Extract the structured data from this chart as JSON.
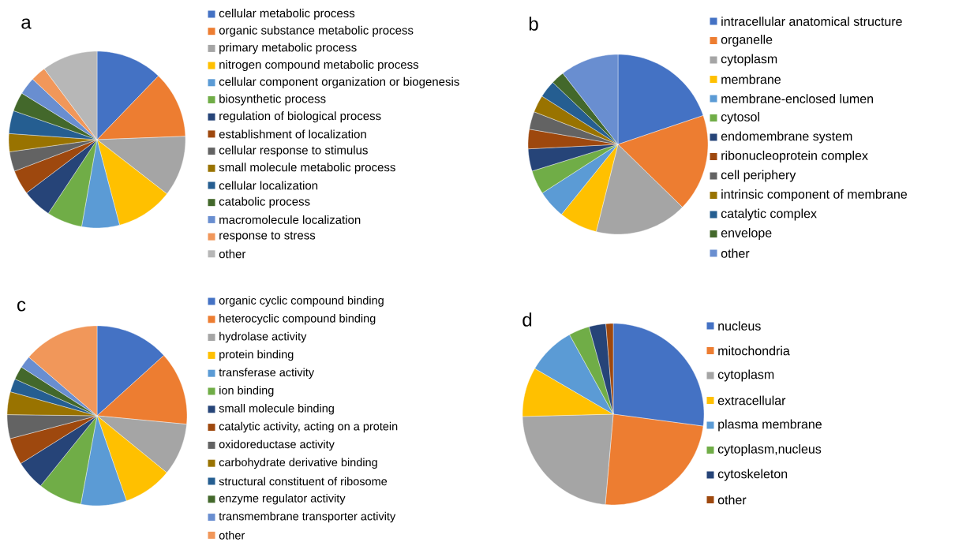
{
  "chart_data": [
    {
      "type": "pie",
      "title": "a",
      "legend": "right",
      "categories": [
        "cellular metabolic process",
        "organic substance metabolic process",
        "primary metabolic process",
        "nitrogen compound metabolic process",
        "cellular component organization or biogenesis",
        "biosynthetic process",
        "regulation of biological process",
        "establishment of localization",
        "cellular response to stimulus",
        "small molecule metabolic process",
        "cellular localization",
        "catabolic process",
        "macromolecule localization",
        "response to stress",
        "other"
      ],
      "values": [
        12.2,
        12.2,
        11.1,
        10.4,
        6.9,
        6.5,
        5.4,
        4.5,
        3.6,
        3.3,
        4.2,
        3.5,
        3.2,
        2.8,
        10.2
      ],
      "colors": [
        "#4472c4",
        "#ed7d31",
        "#a5a5a5",
        "#ffc000",
        "#5b9bd5",
        "#70ad47",
        "#264478",
        "#9e480e",
        "#636363",
        "#997300",
        "#255e91",
        "#43682b",
        "#698ed0",
        "#f1975a",
        "#b7b7b7"
      ]
    },
    {
      "type": "pie",
      "title": "b",
      "legend": "right",
      "categories": [
        "intracellular anatomical structure",
        "organelle",
        "cytoplasm",
        "membrane",
        "membrane-enclosed lumen",
        "cytosol",
        "endomembrane system",
        "ribonucleoprotein complex",
        "cell periphery",
        "intrinsic component of membrane",
        "catalytic complex",
        "envelope",
        "other"
      ],
      "values": [
        19.8,
        17.5,
        16.6,
        6.9,
        5.1,
        4.3,
        4.0,
        3.5,
        3.2,
        3.1,
        3.1,
        2.4,
        10.5
      ],
      "colors": [
        "#4472c4",
        "#ed7d31",
        "#a5a5a5",
        "#ffc000",
        "#5b9bd5",
        "#70ad47",
        "#264478",
        "#9e480e",
        "#636363",
        "#997300",
        "#255e91",
        "#43682b",
        "#698ed0"
      ]
    },
    {
      "type": "pie",
      "title": "c",
      "legend": "right",
      "categories": [
        "organic cyclic compound binding",
        "heterocyclic compound binding",
        "hydrolase activity",
        "protein binding",
        "transferase activity",
        "ion binding",
        "small molecule binding",
        "catalytic activity, acting on a protein",
        "oxidoreductase activity",
        "carbohydrate derivative binding",
        "structural constituent of ribosome",
        "enzyme regulator activity",
        "transmembrane transporter activity",
        "other"
      ],
      "values": [
        13.3,
        13.2,
        9.4,
        8.8,
        8.2,
        7.9,
        5.3,
        4.8,
        4.3,
        4.1,
        2.4,
        2.4,
        2.2,
        13.7
      ],
      "colors": [
        "#4472c4",
        "#ed7d31",
        "#a5a5a5",
        "#ffc000",
        "#5b9bd5",
        "#70ad47",
        "#264478",
        "#9e480e",
        "#636363",
        "#997300",
        "#255e91",
        "#43682b",
        "#698ed0",
        "#f1975a"
      ]
    },
    {
      "type": "pie",
      "title": "d",
      "legend": "right",
      "categories": [
        "nucleus",
        "mitochondria",
        "cytoplasm",
        "extracellular",
        "plasma membrane",
        "cytoplasm,nucleus",
        "cytoskeleton",
        "other"
      ],
      "values": [
        27.1,
        24.3,
        23.2,
        8.8,
        8.6,
        3.7,
        3.0,
        1.3
      ],
      "colors": [
        "#4472c4",
        "#ed7d31",
        "#a5a5a5",
        "#ffc000",
        "#5b9bd5",
        "#70ad47",
        "#264478",
        "#9e480e"
      ]
    }
  ]
}
